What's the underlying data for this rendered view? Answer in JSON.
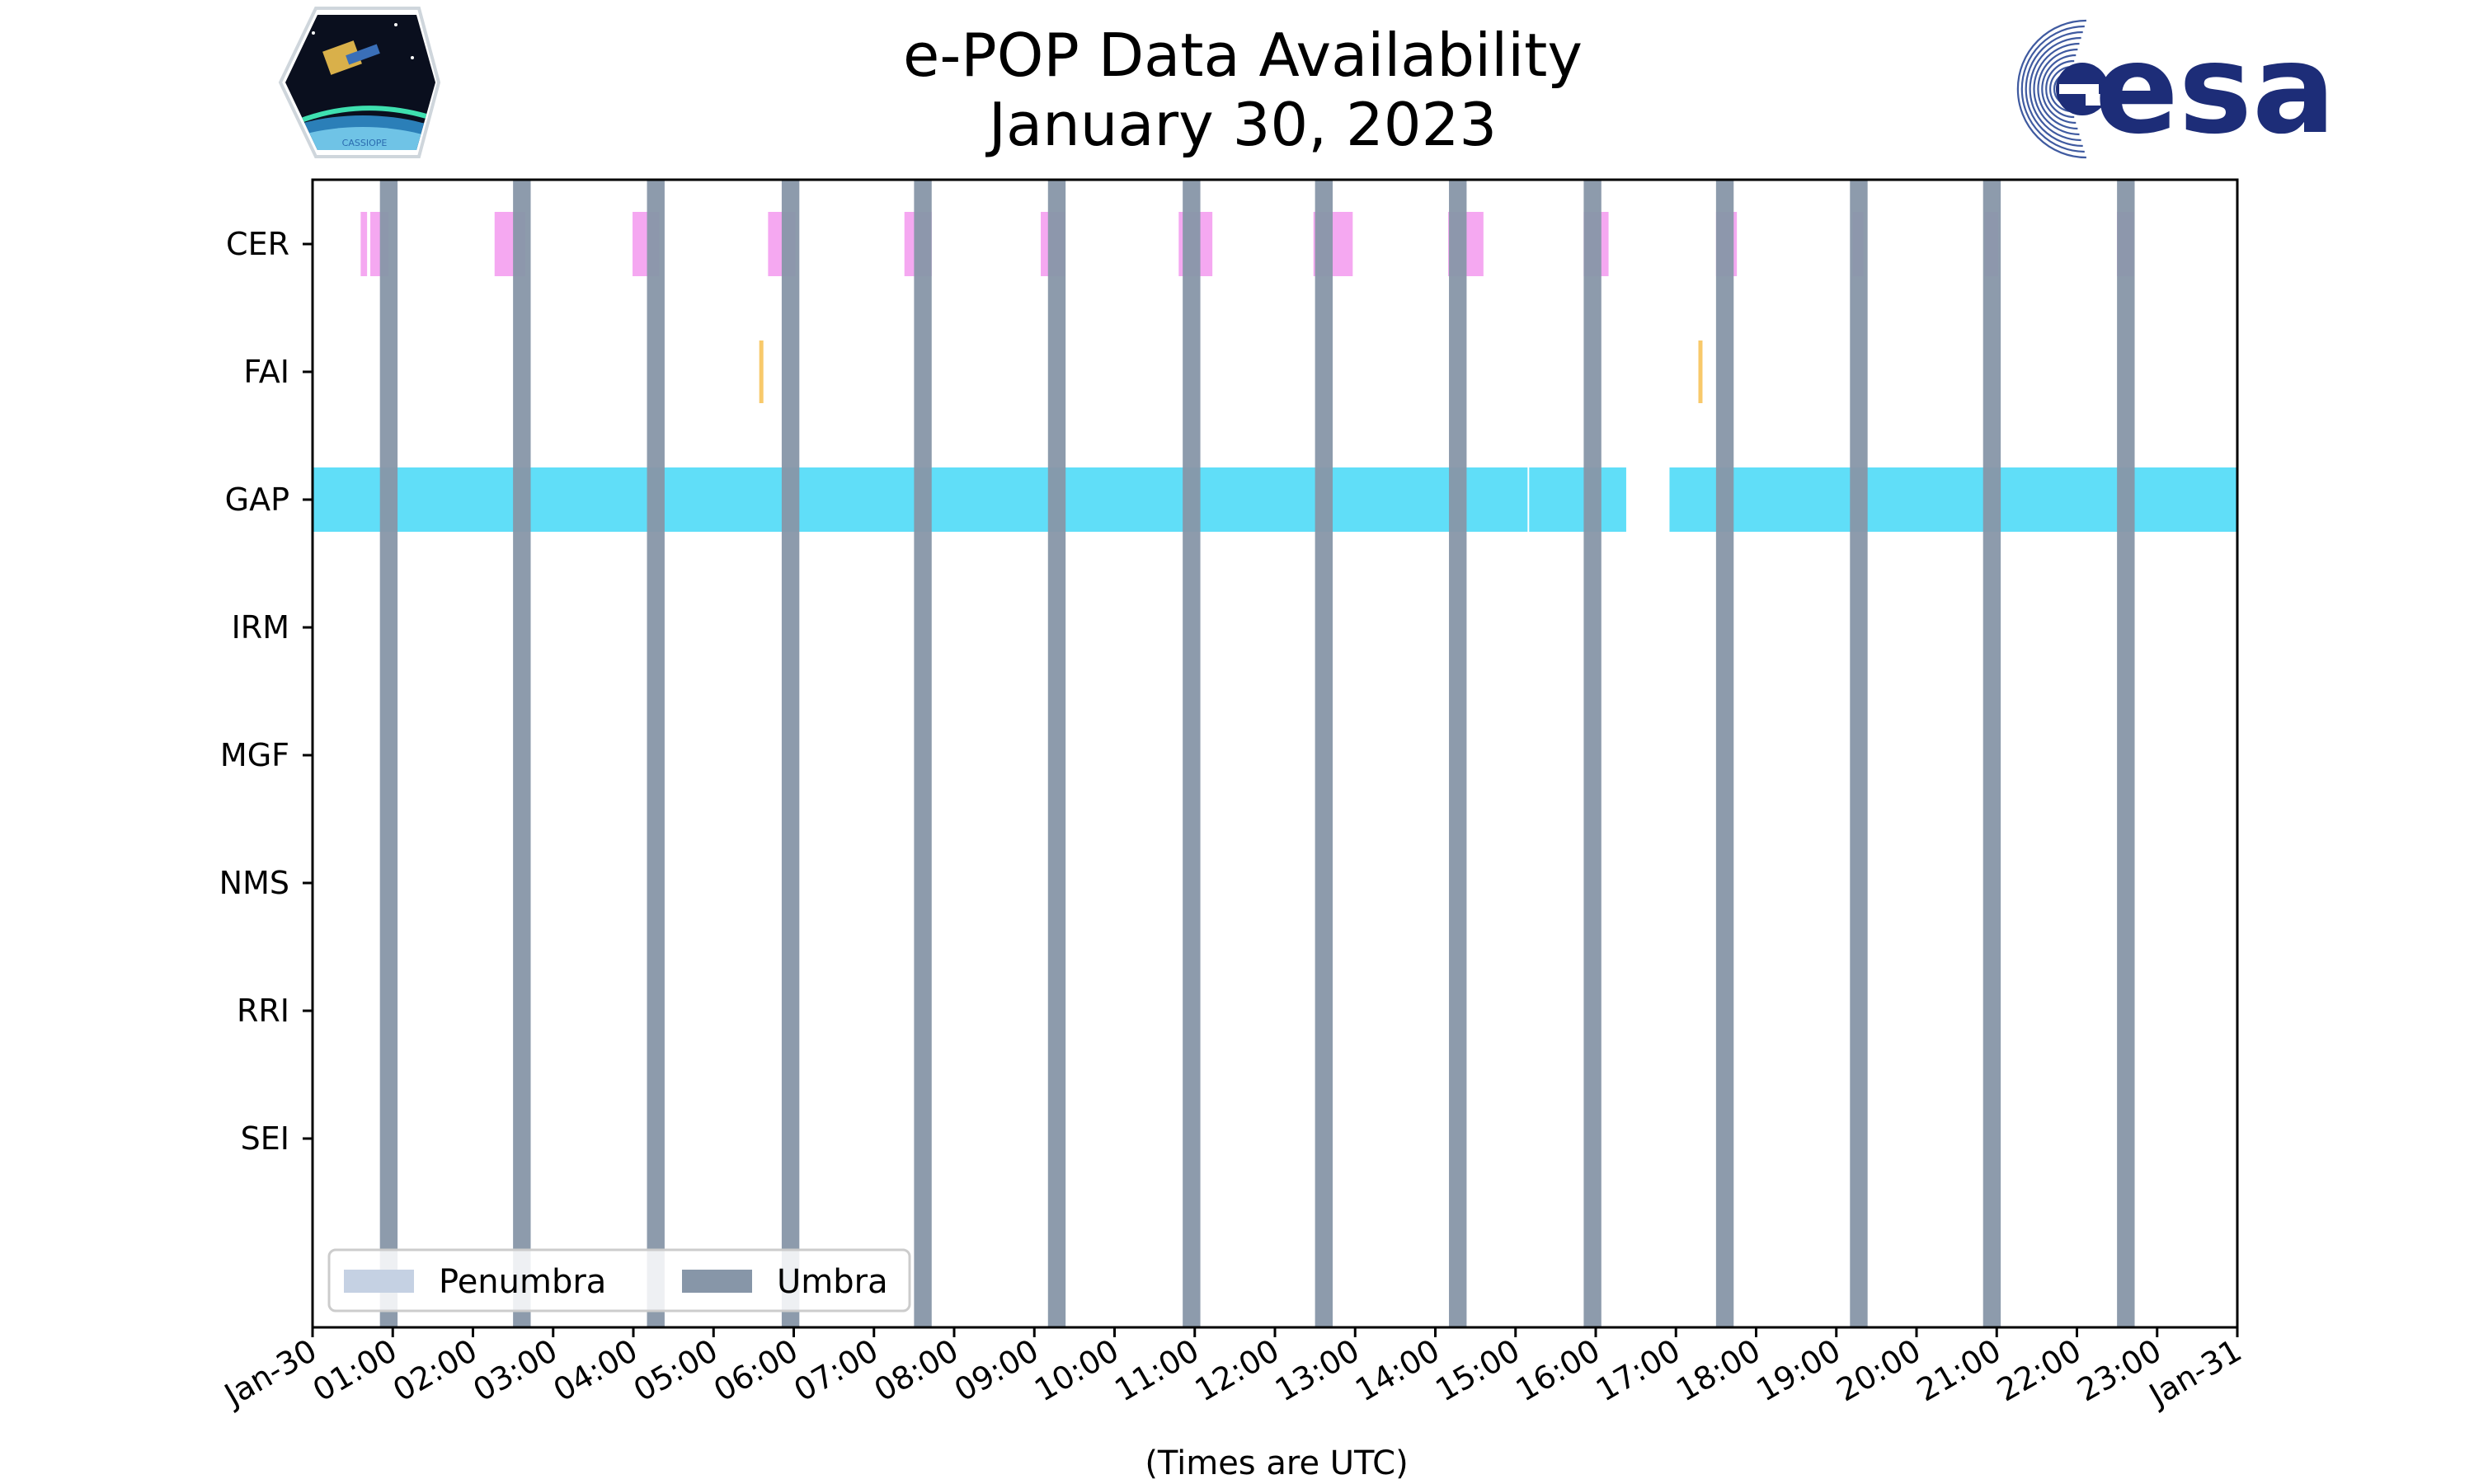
{
  "chart_data": {
    "type": "timeline",
    "title": "e-POP Data Availability",
    "subtitle": "January 30, 2023",
    "xlabel": "(Times are UTC)",
    "x_range_hours": [
      0,
      24
    ],
    "x_ticks": [
      "Jan-30",
      "01:00",
      "02:00",
      "03:00",
      "04:00",
      "05:00",
      "06:00",
      "07:00",
      "08:00",
      "09:00",
      "10:00",
      "11:00",
      "12:00",
      "13:00",
      "14:00",
      "15:00",
      "16:00",
      "17:00",
      "18:00",
      "19:00",
      "20:00",
      "21:00",
      "22:00",
      "23:00",
      "Jan-31"
    ],
    "instruments": [
      "CER",
      "FAI",
      "GAP",
      "IRM",
      "MGF",
      "NMS",
      "RRI",
      "SEI"
    ],
    "colors": {
      "CER": "#f49ff0",
      "FAI": "#f7c35a",
      "GAP": "#4fdaf7",
      "umbra": "#8796a8",
      "penumbra": "#c5d1e3",
      "axis": "#000000"
    },
    "data_intervals": {
      "CER": [
        [
          0.6,
          0.68
        ],
        [
          0.72,
          0.95
        ],
        [
          2.27,
          2.65
        ],
        [
          3.99,
          4.32
        ],
        [
          5.68,
          6.02
        ],
        [
          7.38,
          7.72
        ],
        [
          9.08,
          9.38
        ],
        [
          10.8,
          11.22
        ],
        [
          12.48,
          12.97
        ],
        [
          14.16,
          14.6
        ],
        [
          15.85,
          16.16
        ],
        [
          17.5,
          17.76
        ],
        [
          19.2,
          19.34
        ],
        [
          20.85,
          21.02
        ],
        [
          22.5,
          22.71
        ]
      ],
      "FAI": [
        [
          5.57,
          5.63
        ],
        [
          17.28,
          17.34
        ]
      ],
      "GAP": [
        [
          0.0,
          15.15
        ],
        [
          15.17,
          16.38
        ],
        [
          16.92,
          24.0
        ]
      ],
      "IRM": [],
      "MGF": [],
      "NMS": [],
      "RRI": [],
      "SEI": []
    },
    "umbra": [
      [
        0.84,
        1.06
      ],
      [
        2.5,
        2.72
      ],
      [
        4.17,
        4.39
      ],
      [
        5.85,
        6.07
      ],
      [
        7.5,
        7.72
      ],
      [
        9.17,
        9.39
      ],
      [
        10.85,
        11.07
      ],
      [
        12.5,
        12.72
      ],
      [
        14.17,
        14.39
      ],
      [
        15.85,
        16.07
      ],
      [
        17.5,
        17.72
      ],
      [
        19.17,
        19.39
      ],
      [
        20.83,
        21.05
      ],
      [
        22.5,
        22.72
      ]
    ],
    "penumbra": [],
    "legend": {
      "position": "lower-left",
      "entries": [
        {
          "key": "penumbra",
          "label": "Penumbra"
        },
        {
          "key": "umbra",
          "label": "Umbra"
        }
      ]
    },
    "logos": {
      "left": {
        "name": "cassiope-mission-logo",
        "text": "CASSIOPE"
      },
      "right": {
        "name": "esa-logo",
        "text": "esa"
      }
    }
  }
}
